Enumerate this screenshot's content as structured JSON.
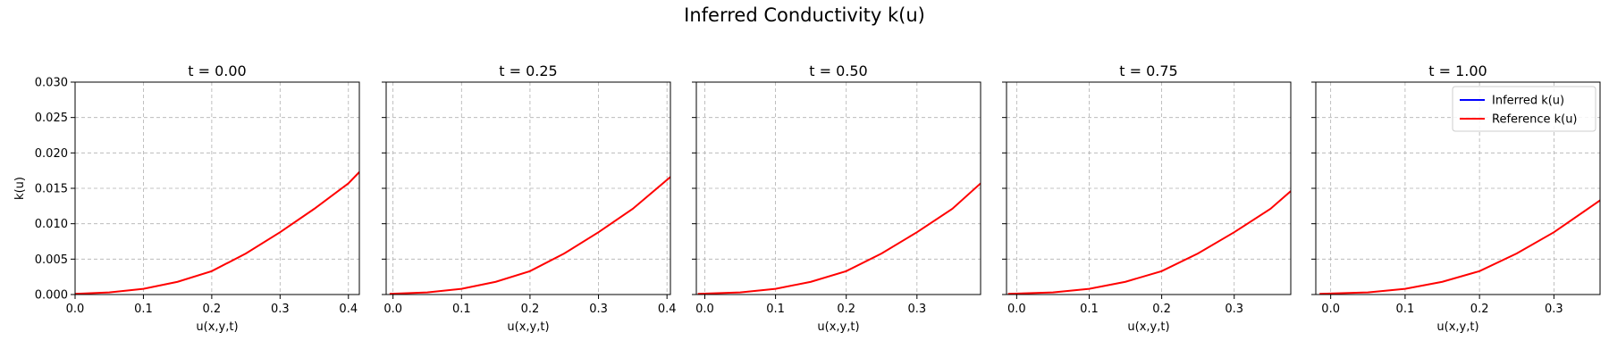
{
  "title": "Inferred Conductivity k(u)",
  "colors": {
    "inferred": "#0000ff",
    "reference": "#ff0000"
  },
  "chart_data": [
    {
      "type": "line",
      "title": "t = 0.00",
      "xlabel": "u(x,y,t)",
      "ylabel": "k(u)",
      "xlim": [
        0.0,
        0.416
      ],
      "ylim": [
        0.0,
        0.03
      ],
      "xticks": [
        "0.0",
        "0.1",
        "0.2",
        "0.3",
        "0.4"
      ],
      "yticks": [
        "0.000",
        "0.005",
        "0.010",
        "0.015",
        "0.020",
        "0.025",
        "0.030"
      ],
      "grid": true,
      "legend": null,
      "series": [
        {
          "name": "Reference k(u)",
          "color": "#ff0000",
          "x": [
            0.0,
            0.05,
            0.1,
            0.15,
            0.2,
            0.25,
            0.3,
            0.35,
            0.4,
            0.416
          ],
          "y": [
            0.0001,
            0.0003,
            0.0008,
            0.0018,
            0.0033,
            0.0058,
            0.0088,
            0.0121,
            0.0157,
            0.0173
          ]
        }
      ]
    },
    {
      "type": "line",
      "title": "t = 0.25",
      "xlabel": "u(x,y,t)",
      "ylabel": "",
      "xlim": [
        -0.01,
        0.405
      ],
      "ylim": [
        0.0,
        0.03
      ],
      "xticks": [
        "0.0",
        "0.1",
        "0.2",
        "0.3",
        "0.4"
      ],
      "yticks": [],
      "grid": true,
      "legend": null,
      "series": [
        {
          "name": "Reference k(u)",
          "color": "#ff0000",
          "x": [
            -0.005,
            0.05,
            0.1,
            0.15,
            0.2,
            0.25,
            0.3,
            0.35,
            0.405
          ],
          "y": [
            0.0001,
            0.0003,
            0.0008,
            0.0018,
            0.0033,
            0.0058,
            0.0088,
            0.0121,
            0.0166
          ]
        }
      ]
    },
    {
      "type": "line",
      "title": "t = 0.50",
      "xlabel": "u(x,y,t)",
      "ylabel": "",
      "xlim": [
        -0.012,
        0.39
      ],
      "ylim": [
        0.0,
        0.03
      ],
      "xticks": [
        "0.0",
        "0.1",
        "0.2",
        "0.3"
      ],
      "yticks": [],
      "grid": true,
      "legend": null,
      "series": [
        {
          "name": "Reference k(u)",
          "color": "#ff0000",
          "x": [
            -0.01,
            0.05,
            0.1,
            0.15,
            0.2,
            0.25,
            0.3,
            0.35,
            0.39
          ],
          "y": [
            0.0001,
            0.0003,
            0.0008,
            0.0018,
            0.0033,
            0.0058,
            0.0088,
            0.0121,
            0.0157
          ]
        }
      ]
    },
    {
      "type": "line",
      "title": "t = 0.75",
      "xlabel": "u(x,y,t)",
      "ylabel": "",
      "xlim": [
        -0.014,
        0.378
      ],
      "ylim": [
        0.0,
        0.03
      ],
      "xticks": [
        "0.0",
        "0.1",
        "0.2",
        "0.3"
      ],
      "yticks": [],
      "grid": true,
      "legend": null,
      "series": [
        {
          "name": "Reference k(u)",
          "color": "#ff0000",
          "x": [
            -0.012,
            0.05,
            0.1,
            0.15,
            0.2,
            0.25,
            0.3,
            0.35,
            0.378
          ],
          "y": [
            0.0001,
            0.0003,
            0.0008,
            0.0018,
            0.0033,
            0.0058,
            0.0088,
            0.0121,
            0.0146
          ]
        }
      ]
    },
    {
      "type": "line",
      "title": "t = 1.00",
      "xlabel": "u(x,y,t)",
      "ylabel": "",
      "xlim": [
        -0.02,
        0.362
      ],
      "ylim": [
        0.0,
        0.03
      ],
      "xticks": [
        "0.0",
        "0.1",
        "0.2",
        "0.3"
      ],
      "yticks": [],
      "grid": true,
      "legend": "top-right",
      "series": [
        {
          "name": "Inferred k(u)",
          "color": "#0000ff",
          "x": [],
          "y": []
        },
        {
          "name": "Reference k(u)",
          "color": "#ff0000",
          "x": [
            -0.015,
            0.05,
            0.1,
            0.15,
            0.2,
            0.25,
            0.3,
            0.362
          ],
          "y": [
            0.0001,
            0.0003,
            0.0008,
            0.0018,
            0.0033,
            0.0058,
            0.0088,
            0.0133
          ]
        }
      ]
    }
  ]
}
